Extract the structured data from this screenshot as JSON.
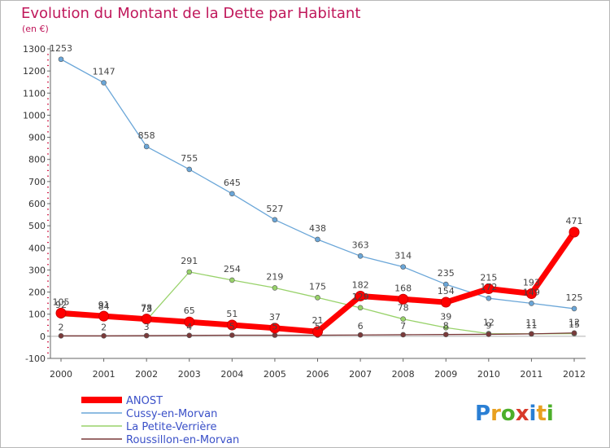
{
  "chart_data": {
    "type": "line",
    "title": "Evolution du Montant de la Dette par Habitant",
    "subtitle": "(en €)",
    "xlabel": "",
    "ylabel": "",
    "ylim": [
      -100,
      1300
    ],
    "yticks": [
      -100,
      0,
      100,
      200,
      300,
      400,
      500,
      600,
      700,
      800,
      900,
      1000,
      1100,
      1200,
      1300
    ],
    "grid": false,
    "legend_position": "bottom-left",
    "x": [
      "2000",
      "2001",
      "2002",
      "2003",
      "2004",
      "2005",
      "2006",
      "2007",
      "2008",
      "2009",
      "2010",
      "2011",
      "2012"
    ],
    "series": [
      {
        "name": "ANOST",
        "color": "#ff0000",
        "values": [
          105,
          91,
          78,
          65,
          51,
          37,
          21,
          182,
          168,
          154,
          215,
          193,
          471
        ]
      },
      {
        "name": "Cussy-en-Morvan",
        "color": "#6aa6d8",
        "values": [
          1253,
          1147,
          858,
          755,
          645,
          527,
          438,
          363,
          314,
          235,
          172,
          149,
          125
        ]
      },
      {
        "name": "La Petite-Verrière",
        "color": "#98d26a",
        "values": [
          92,
          84,
          73,
          291,
          254,
          219,
          175,
          129,
          78,
          39,
          12,
          11,
          12
        ]
      },
      {
        "name": "Roussillon-en-Morvan",
        "color": "#7a3a3a",
        "values": [
          2,
          2,
          3,
          4,
          5,
          5,
          5,
          6,
          7,
          8,
          9,
          11,
          15
        ]
      }
    ]
  },
  "branding": {
    "logo": "Proxiti"
  }
}
